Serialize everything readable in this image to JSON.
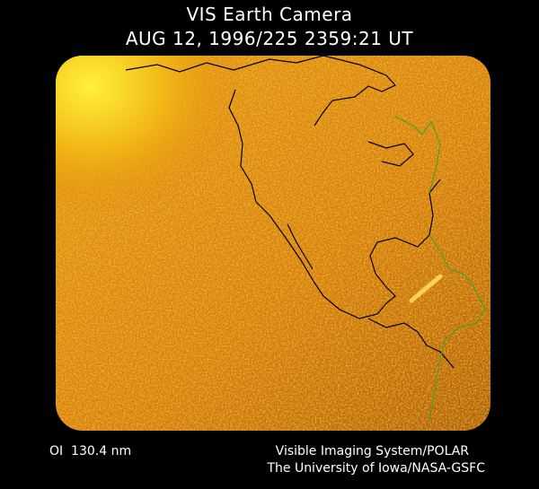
{
  "header": {
    "title": "VIS Earth Camera",
    "timestamp": "AUG 12, 1996/225 2359:21 UT"
  },
  "footer": {
    "wavelength": "OI  130.4 nm",
    "credit_lines": [
      "Visible Imaging System/POLAR",
      "The University of Iowa/NASA-GSFC"
    ]
  }
}
